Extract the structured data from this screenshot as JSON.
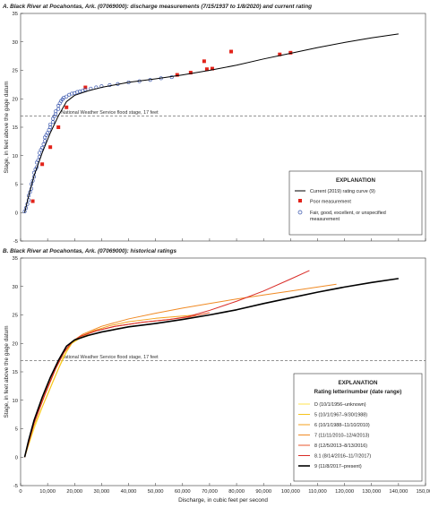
{
  "figure": {
    "xlabel": "Discharge, in cubic feet per second",
    "ylabel": "Stage, in feet above the gage datum"
  },
  "chart_data": [
    {
      "type": "scatter",
      "title": "A. Black River at Pocahontas, Ark. (07069000): discharge measurements (7/15/1937 to 1/8/2020) and current rating",
      "xlim": [
        0,
        150000
      ],
      "ylim": [
        -5,
        35
      ],
      "xticks": [
        "0",
        "10,000",
        "20,000",
        "30,000",
        "40,000",
        "50,000",
        "60,000",
        "70,000",
        "80,000",
        "90,000",
        "100,000",
        "110,000",
        "120,000",
        "130,000",
        "140,000",
        "150,000"
      ],
      "yticks": [
        "-5",
        "0",
        "5",
        "10",
        "15",
        "20",
        "25",
        "30",
        "35"
      ],
      "reference_line": {
        "y": 17,
        "label": "National Weather Service flood stage, 17 feet"
      },
      "legend": {
        "title": "EXPLANATION",
        "position": "bottom-right",
        "entries": [
          "Current (2019) rating curve (9)",
          "Poor measurement",
          "Fair, good, excellent, or unspecified measurement"
        ]
      },
      "series": [
        {
          "name": "Current (2019) rating curve (9)",
          "kind": "line",
          "color": "#000000",
          "x": [
            1500,
            3000,
            5000,
            8000,
            11000,
            14000,
            17000,
            20000,
            25000,
            30000,
            40000,
            50000,
            60000,
            70000,
            80000,
            90000,
            100000,
            110000,
            120000,
            130000,
            140000
          ],
          "y": [
            0,
            3,
            6.5,
            10.5,
            14,
            17,
            19.5,
            20.6,
            21.4,
            22,
            22.9,
            23.5,
            24.2,
            25,
            25.9,
            27,
            28,
            29,
            29.9,
            30.7,
            31.4
          ]
        },
        {
          "name": "Poor measurement",
          "kind": "points",
          "marker": "square",
          "color": "#e2231a",
          "x": [
            4500,
            8000,
            11000,
            14000,
            17000,
            24000,
            58000,
            63000,
            68000,
            69000,
            71000,
            78000,
            96000,
            100000
          ],
          "y": [
            2,
            8.5,
            11.5,
            15,
            18.5,
            22,
            24.2,
            24.6,
            26.6,
            25.2,
            25.3,
            28.3,
            27.8,
            28.1
          ]
        },
        {
          "name": "Fair, good, excellent, or unspecified measurement",
          "kind": "points",
          "marker": "circle",
          "color": "#2b4aa8",
          "x": [
            1500,
            2000,
            2500,
            3000,
            3000,
            3500,
            4000,
            4000,
            4500,
            5000,
            5000,
            5500,
            6000,
            6000,
            6500,
            7000,
            7000,
            7500,
            8000,
            8500,
            9000,
            9000,
            9500,
            10000,
            10500,
            11000,
            11000,
            12000,
            12000,
            12500,
            13000,
            13000,
            14000,
            14000,
            14500,
            15000,
            15500,
            16000,
            17000,
            18000,
            19000,
            20000,
            21000,
            22000,
            23000,
            24000,
            26000,
            28000,
            30000,
            33000,
            36000,
            40000,
            44000,
            48000,
            52000,
            56000
          ],
          "y": [
            0.2,
            0.8,
            1.5,
            2.2,
            3,
            3.6,
            4.2,
            5,
            5.6,
            6.3,
            7,
            7.6,
            8,
            8.8,
            9.2,
            9.8,
            10.5,
            11,
            11.4,
            12,
            12.6,
            13.2,
            13.6,
            14,
            14.5,
            15,
            15.5,
            15.9,
            16.5,
            16.9,
            17.3,
            17.8,
            18.2,
            18.8,
            19.2,
            19.6,
            19.9,
            20.2,
            20.4,
            20.7,
            20.9,
            21,
            21.2,
            21.3,
            21.4,
            21.6,
            21.8,
            22,
            22.2,
            22.4,
            22.6,
            22.9,
            23.1,
            23.3,
            23.6,
            23.8
          ]
        }
      ]
    },
    {
      "type": "line",
      "title": "B. Black River at Pocahontas, Ark. (07069000): historical ratings",
      "xlim": [
        0,
        150000
      ],
      "ylim": [
        -5,
        35
      ],
      "xticks": [
        "0",
        "10,000",
        "20,000",
        "30,000",
        "40,000",
        "50,000",
        "60,000",
        "70,000",
        "80,000",
        "90,000",
        "100,000",
        "110,000",
        "120,000",
        "130,000",
        "140,000",
        "150,000"
      ],
      "yticks": [
        "-5",
        "0",
        "5",
        "10",
        "15",
        "20",
        "25",
        "30",
        "35"
      ],
      "reference_line": {
        "y": 17,
        "label": "National Weather Service flood stage, 17 feet"
      },
      "legend": {
        "title": "EXPLANATION",
        "subtitle": "Rating letter/number (date range)",
        "position": "bottom-right",
        "entries": [
          "D (10/1/1956–unknown)",
          "5 (10/1/1967–9/30/1988)",
          "6 (10/1/1988–11/10/2010)",
          "7 (11/11/2010–12/4/2013)",
          "8 (12/5/2013–8/13/2016)",
          "8.1 (8/14/2016–11/7/2017)",
          "9 (11/8/2017–present)"
        ]
      },
      "series": [
        {
          "name": "D (10/1/1956–unknown)",
          "color": "#ffe34d",
          "width": 1,
          "x": [
            1500,
            5000,
            9000,
            13000,
            16000,
            18500,
            21000,
            25000
          ],
          "y": [
            0,
            5,
            10,
            14.5,
            17.8,
            19.8,
            20.8,
            21.6
          ]
        },
        {
          "name": "5 (10/1/1967–9/30/1988)",
          "color": "#f6c31a",
          "width": 1,
          "x": [
            1500,
            5000,
            10000,
            14000,
            17000,
            19000,
            22000,
            26000,
            30000,
            36000,
            42000
          ],
          "y": [
            0,
            5.5,
            11,
            15.5,
            18.5,
            20,
            20.9,
            21.5,
            22,
            22.6,
            23.1
          ]
        },
        {
          "name": "6 (10/1/1988–11/10/2010)",
          "color": "#f4a21c",
          "width": 1,
          "x": [
            1500,
            5000,
            9000,
            13000,
            16000,
            19000,
            22000,
            27000,
            33000,
            40000,
            50000,
            60000,
            65000
          ],
          "y": [
            0,
            6,
            11,
            15.5,
            18.3,
            20.2,
            21.2,
            22.2,
            23.1,
            23.8,
            24.4,
            24.8,
            25
          ]
        },
        {
          "name": "7 (11/11/2010–12/4/2013)",
          "color": "#f08a24",
          "width": 1,
          "x": [
            1500,
            5000,
            9000,
            13000,
            16000,
            19000,
            23000,
            30000,
            40000,
            50000,
            60000,
            70000,
            80000,
            90000,
            100000,
            110000,
            117000
          ],
          "y": [
            0,
            6.2,
            11.2,
            15.7,
            18.4,
            20.3,
            21.6,
            23,
            24.3,
            25.3,
            26.2,
            27,
            27.8,
            28.5,
            29.2,
            29.9,
            30.4
          ]
        },
        {
          "name": "8 (12/5/2013–8/13/2016)",
          "color": "#e8572d",
          "width": 1,
          "x": [
            1500,
            5000,
            9000,
            13000,
            16000,
            19000,
            22000,
            28000,
            35000,
            45000,
            55000,
            62000,
            70000
          ],
          "y": [
            0,
            6,
            11,
            15.6,
            18.4,
            20.2,
            21.2,
            22.2,
            23,
            23.7,
            24.2,
            24.6,
            25.4
          ]
        },
        {
          "name": "8.1 (8/14/2016–11/7/2017)",
          "color": "#d92b26",
          "width": 1,
          "x": [
            1500,
            5000,
            9000,
            13000,
            16000,
            19000,
            22000,
            28000,
            35000,
            45000,
            55000,
            62000,
            70000,
            80000,
            90000,
            100000,
            107000
          ],
          "y": [
            0,
            6,
            11,
            15.6,
            18.4,
            20.2,
            21.2,
            22.2,
            23,
            23.7,
            24.2,
            24.7,
            25.8,
            27.4,
            29.2,
            31.3,
            32.8
          ]
        },
        {
          "name": "9 (11/8/2017–present)",
          "color": "#000000",
          "width": 1.6,
          "x": [
            1500,
            3000,
            5000,
            8000,
            11000,
            14000,
            17000,
            20000,
            25000,
            30000,
            40000,
            50000,
            60000,
            70000,
            80000,
            90000,
            100000,
            110000,
            120000,
            130000,
            140000
          ],
          "y": [
            0,
            3,
            6.5,
            10.5,
            14,
            17,
            19.5,
            20.6,
            21.4,
            22,
            22.9,
            23.5,
            24.2,
            25,
            25.9,
            27,
            28,
            29,
            29.9,
            30.7,
            31.4
          ]
        }
      ]
    }
  ]
}
